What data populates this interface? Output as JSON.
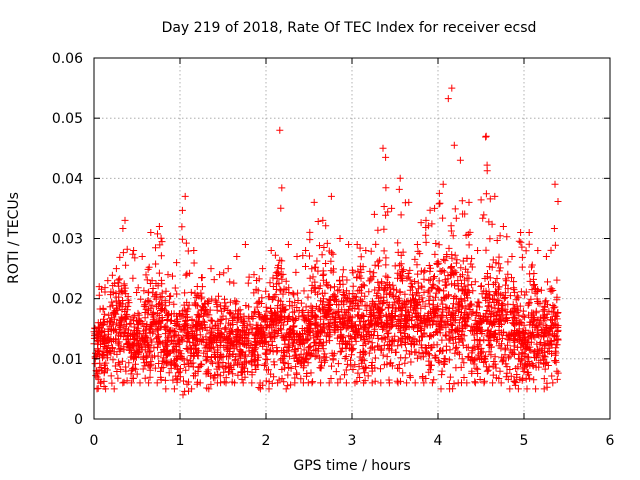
{
  "chart_data": {
    "type": "scatter",
    "title": "Day 219 of 2018, Rate Of TEC Index for receiver ecsd",
    "xlabel": "GPS time / hours",
    "ylabel": "ROTI / TECUs",
    "xlim": [
      0,
      6
    ],
    "ylim": [
      0,
      0.06
    ],
    "x_ticks": [
      0,
      1,
      2,
      3,
      4,
      5,
      6
    ],
    "x_tick_labels": [
      "0",
      "1",
      "2",
      "3",
      "4",
      "5",
      "6"
    ],
    "y_ticks": [
      0,
      0.01,
      0.02,
      0.03,
      0.04,
      0.05,
      0.06
    ],
    "y_tick_labels": [
      "0",
      "0.01",
      "0.02",
      "0.03",
      "0.04",
      "0.05",
      "0.06"
    ],
    "grid": true,
    "marker": "plus",
    "series_color": "#ff0000",
    "series": [
      {
        "name": "ROTI",
        "x": [
          0.0,
          0.1,
          0.2,
          0.3,
          0.4,
          0.5,
          0.6,
          0.7,
          0.8,
          0.9,
          1.0,
          1.1,
          1.2,
          1.3,
          1.4,
          1.5,
          1.6,
          1.7,
          1.8,
          1.9,
          2.0,
          2.1,
          2.2,
          2.3,
          2.4,
          2.5,
          2.6,
          2.7,
          2.8,
          2.9,
          3.0,
          3.1,
          3.2,
          3.3,
          3.4,
          3.5,
          3.6,
          3.7,
          3.8,
          3.9,
          4.0,
          4.1,
          4.2,
          4.3,
          4.4,
          4.5,
          4.6,
          4.7,
          4.8,
          4.9,
          5.0,
          5.1,
          5.2,
          5.3
        ],
        "y": [
          0.0125,
          0.0133,
          0.0148,
          0.0164,
          0.0126,
          0.0131,
          0.0148,
          0.0162,
          0.0126,
          0.0131,
          0.0128,
          0.0136,
          0.0151,
          0.0123,
          0.0131,
          0.0133,
          0.0127,
          0.0126,
          0.0126,
          0.0134,
          0.0152,
          0.0166,
          0.0135,
          0.0135,
          0.0137,
          0.0156,
          0.0155,
          0.0176,
          0.0156,
          0.0156,
          0.0161,
          0.0155,
          0.0157,
          0.0168,
          0.0157,
          0.0172,
          0.0152,
          0.0169,
          0.0163,
          0.0164,
          0.0162,
          0.0172,
          0.0164,
          0.0168,
          0.0146,
          0.016,
          0.0158,
          0.0162,
          0.0139,
          0.0138,
          0.0136,
          0.0144,
          0.0138,
          0.0145
        ],
        "y_min": [
          0.005,
          0.005,
          0.005,
          0.006,
          0.006,
          0.006,
          0.006,
          0.006,
          0.005,
          0.005,
          0.004,
          0.005,
          0.006,
          0.005,
          0.006,
          0.006,
          0.006,
          0.006,
          0.006,
          0.005,
          0.005,
          0.006,
          0.005,
          0.006,
          0.006,
          0.006,
          0.006,
          0.006,
          0.006,
          0.006,
          0.006,
          0.006,
          0.006,
          0.006,
          0.006,
          0.006,
          0.006,
          0.006,
          0.006,
          0.006,
          0.005,
          0.005,
          0.006,
          0.006,
          0.006,
          0.006,
          0.006,
          0.006,
          0.005,
          0.005,
          0.005,
          0.005,
          0.005,
          0.006
        ],
        "y_max": [
          0.022,
          0.023,
          0.025,
          0.033,
          0.028,
          0.027,
          0.031,
          0.032,
          0.024,
          0.026,
          0.037,
          0.028,
          0.022,
          0.025,
          0.024,
          0.025,
          0.027,
          0.029,
          0.024,
          0.025,
          0.028,
          0.048,
          0.029,
          0.027,
          0.028,
          0.036,
          0.033,
          0.037,
          0.03,
          0.029,
          0.029,
          0.028,
          0.034,
          0.045,
          0.035,
          0.04,
          0.036,
          0.029,
          0.033,
          0.035,
          0.039,
          0.055,
          0.043,
          0.036,
          0.028,
          0.047,
          0.037,
          0.032,
          0.027,
          0.031,
          0.031,
          0.028,
          0.027,
          0.039
        ]
      }
    ]
  }
}
